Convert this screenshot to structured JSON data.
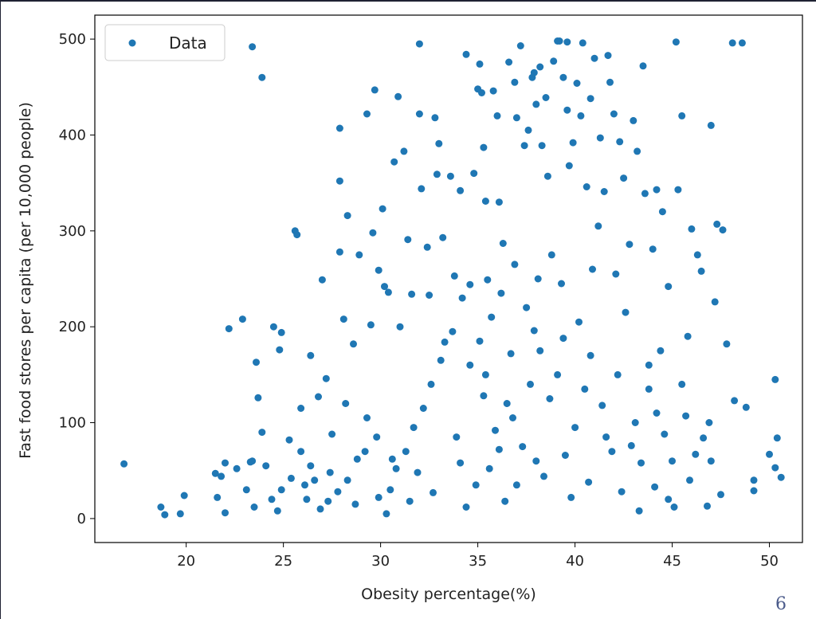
{
  "page": {
    "number": "6"
  },
  "colors": {
    "marker": "#1f77b4",
    "axis": "#000000",
    "text": "#222222",
    "page_number": "#4a5a8a"
  },
  "chart_data": {
    "type": "scatter",
    "xlabel": "Obesity percentage(%)",
    "ylabel": "Fast food stores per capita (per 10,000 people)",
    "xlim": [
      15.3,
      51.7
    ],
    "ylim": [
      -25,
      525
    ],
    "xticks": [
      "20",
      "25",
      "30",
      "35",
      "40",
      "45",
      "50"
    ],
    "yticks": [
      "0",
      "100",
      "200",
      "300",
      "400",
      "500"
    ],
    "grid": false,
    "legend": {
      "placement": "top-left",
      "entries": [
        "Data"
      ]
    },
    "series": [
      {
        "name": "Data",
        "points": [
          [
            16.8,
            57
          ],
          [
            18.7,
            12
          ],
          [
            18.9,
            4
          ],
          [
            19.9,
            24
          ],
          [
            19.7,
            5
          ],
          [
            21.5,
            47
          ],
          [
            21.6,
            22
          ],
          [
            22.0,
            6
          ],
          [
            22.0,
            58
          ],
          [
            22.2,
            198
          ],
          [
            22.9,
            208
          ],
          [
            23.3,
            59
          ],
          [
            23.4,
            492
          ],
          [
            23.6,
            163
          ],
          [
            23.7,
            126
          ],
          [
            23.9,
            460
          ],
          [
            23.5,
            12
          ],
          [
            24.1,
            55
          ],
          [
            24.5,
            200
          ],
          [
            24.9,
            194
          ],
          [
            24.8,
            176
          ],
          [
            24.7,
            8
          ],
          [
            25.3,
            82
          ],
          [
            25.6,
            300
          ],
          [
            25.7,
            296
          ],
          [
            25.9,
            115
          ],
          [
            26.2,
            20
          ],
          [
            26.4,
            170
          ],
          [
            26.6,
            40
          ],
          [
            26.8,
            127
          ],
          [
            27.0,
            249
          ],
          [
            27.2,
            146
          ],
          [
            27.5,
            88
          ],
          [
            27.9,
            407
          ],
          [
            27.9,
            352
          ],
          [
            27.9,
            278
          ],
          [
            28.1,
            208
          ],
          [
            28.3,
            316
          ],
          [
            28.2,
            120
          ],
          [
            28.6,
            182
          ],
          [
            28.9,
            275
          ],
          [
            29.2,
            70
          ],
          [
            29.3,
            422
          ],
          [
            29.5,
            202
          ],
          [
            29.6,
            298
          ],
          [
            29.7,
            447
          ],
          [
            29.9,
            259
          ],
          [
            30.1,
            323
          ],
          [
            30.2,
            242
          ],
          [
            30.4,
            236
          ],
          [
            30.3,
            5
          ],
          [
            30.7,
            372
          ],
          [
            30.9,
            440
          ],
          [
            31.0,
            200
          ],
          [
            31.2,
            383
          ],
          [
            31.4,
            291
          ],
          [
            31.6,
            234
          ],
          [
            32.0,
            495
          ],
          [
            32.0,
            422
          ],
          [
            32.1,
            344
          ],
          [
            32.4,
            283
          ],
          [
            32.5,
            233
          ],
          [
            32.8,
            418
          ],
          [
            32.9,
            359
          ],
          [
            33.0,
            391
          ],
          [
            33.2,
            293
          ],
          [
            33.3,
            184
          ],
          [
            33.6,
            357
          ],
          [
            33.8,
            253
          ],
          [
            34.1,
            342
          ],
          [
            34.4,
            484
          ],
          [
            34.6,
            244
          ],
          [
            34.8,
            360
          ],
          [
            35.1,
            474
          ],
          [
            35.0,
            448
          ],
          [
            35.2,
            444
          ],
          [
            35.3,
            387
          ],
          [
            35.4,
            331
          ],
          [
            35.5,
            249
          ],
          [
            35.8,
            446
          ],
          [
            36.0,
            420
          ],
          [
            36.1,
            330
          ],
          [
            36.3,
            287
          ],
          [
            36.6,
            476
          ],
          [
            36.9,
            455
          ],
          [
            37.0,
            418
          ],
          [
            37.2,
            493
          ],
          [
            37.4,
            389
          ],
          [
            37.6,
            405
          ],
          [
            37.8,
            460
          ],
          [
            37.9,
            465
          ],
          [
            38.0,
            432
          ],
          [
            38.2,
            471
          ],
          [
            38.3,
            389
          ],
          [
            38.5,
            439
          ],
          [
            38.6,
            357
          ],
          [
            38.9,
            477
          ],
          [
            39.1,
            498
          ],
          [
            39.2,
            498
          ],
          [
            39.4,
            460
          ],
          [
            39.6,
            426
          ],
          [
            39.6,
            497
          ],
          [
            39.7,
            368
          ],
          [
            39.9,
            392
          ],
          [
            40.1,
            454
          ],
          [
            40.3,
            420
          ],
          [
            40.4,
            496
          ],
          [
            40.6,
            346
          ],
          [
            40.8,
            438
          ],
          [
            41.0,
            480
          ],
          [
            41.3,
            397
          ],
          [
            41.5,
            341
          ],
          [
            41.7,
            483
          ],
          [
            41.8,
            455
          ],
          [
            42.0,
            422
          ],
          [
            42.3,
            393
          ],
          [
            42.5,
            355
          ],
          [
            42.8,
            286
          ],
          [
            43.0,
            415
          ],
          [
            43.2,
            383
          ],
          [
            43.5,
            472
          ],
          [
            43.6,
            339
          ],
          [
            44.0,
            281
          ],
          [
            44.2,
            343
          ],
          [
            44.5,
            320
          ],
          [
            44.8,
            242
          ],
          [
            45.2,
            497
          ],
          [
            45.3,
            343
          ],
          [
            45.5,
            420
          ],
          [
            45.8,
            190
          ],
          [
            46.0,
            302
          ],
          [
            46.3,
            275
          ],
          [
            46.5,
            258
          ],
          [
            47.0,
            410
          ],
          [
            47.2,
            226
          ],
          [
            47.3,
            307
          ],
          [
            47.6,
            301
          ],
          [
            47.8,
            182
          ],
          [
            48.1,
            496
          ],
          [
            48.6,
            496
          ],
          [
            48.2,
            123
          ],
          [
            48.8,
            116
          ],
          [
            49.2,
            40
          ],
          [
            49.2,
            29
          ],
          [
            50.0,
            67
          ],
          [
            50.3,
            145
          ],
          [
            50.4,
            84
          ],
          [
            50.3,
            53
          ],
          [
            50.6,
            43
          ],
          [
            47.5,
            25
          ],
          [
            47.0,
            60
          ],
          [
            46.8,
            13
          ],
          [
            46.6,
            84
          ],
          [
            46.2,
            67
          ],
          [
            45.9,
            40
          ],
          [
            45.7,
            107
          ],
          [
            45.5,
            140
          ],
          [
            44.8,
            20
          ],
          [
            44.2,
            110
          ],
          [
            43.8,
            160
          ],
          [
            43.3,
            8
          ],
          [
            42.6,
            215
          ],
          [
            42.1,
            255
          ],
          [
            41.2,
            305
          ],
          [
            40.9,
            260
          ],
          [
            40.2,
            205
          ],
          [
            39.3,
            245
          ],
          [
            38.8,
            275
          ],
          [
            38.1,
            250
          ],
          [
            37.5,
            220
          ],
          [
            36.9,
            265
          ],
          [
            36.2,
            235
          ],
          [
            35.7,
            210
          ],
          [
            35.1,
            185
          ],
          [
            34.6,
            160
          ],
          [
            34.2,
            230
          ],
          [
            33.7,
            195
          ],
          [
            33.1,
            165
          ],
          [
            32.6,
            140
          ],
          [
            32.2,
            115
          ],
          [
            31.7,
            95
          ],
          [
            31.3,
            70
          ],
          [
            30.8,
            52
          ],
          [
            30.5,
            30
          ],
          [
            29.8,
            85
          ],
          [
            29.3,
            105
          ],
          [
            28.8,
            62
          ],
          [
            28.3,
            40
          ],
          [
            27.8,
            28
          ],
          [
            27.3,
            18
          ],
          [
            26.9,
            10
          ],
          [
            26.4,
            55
          ],
          [
            25.9,
            70
          ],
          [
            25.4,
            42
          ],
          [
            24.9,
            30
          ],
          [
            24.4,
            20
          ],
          [
            23.9,
            90
          ],
          [
            23.4,
            60
          ],
          [
            23.1,
            30
          ],
          [
            22.6,
            52
          ],
          [
            21.8,
            44
          ],
          [
            26.1,
            35
          ],
          [
            27.4,
            48
          ],
          [
            28.7,
            15
          ],
          [
            29.9,
            22
          ],
          [
            31.9,
            48
          ],
          [
            34.9,
            35
          ],
          [
            35.6,
            52
          ],
          [
            36.4,
            18
          ],
          [
            37.3,
            75
          ],
          [
            38.4,
            44
          ],
          [
            39.5,
            66
          ],
          [
            40.7,
            38
          ],
          [
            41.6,
            85
          ],
          [
            42.4,
            28
          ],
          [
            43.4,
            58
          ],
          [
            44.1,
            33
          ],
          [
            44.6,
            88
          ],
          [
            45.1,
            12
          ],
          [
            33.9,
            85
          ],
          [
            34.4,
            12
          ],
          [
            36.8,
            105
          ],
          [
            38.7,
            125
          ],
          [
            40.0,
            95
          ],
          [
            41.9,
            70
          ],
          [
            43.1,
            100
          ],
          [
            39.1,
            150
          ],
          [
            38.2,
            175
          ],
          [
            37.7,
            140
          ],
          [
            36.5,
            120
          ],
          [
            35.9,
            92
          ],
          [
            40.5,
            135
          ],
          [
            41.4,
            118
          ],
          [
            42.9,
            76
          ],
          [
            37.0,
            35
          ],
          [
            39.8,
            22
          ],
          [
            38.0,
            60
          ],
          [
            36.1,
            72
          ],
          [
            34.1,
            58
          ],
          [
            32.7,
            27
          ],
          [
            31.5,
            18
          ],
          [
            30.6,
            62
          ],
          [
            35.3,
            128
          ],
          [
            42.2,
            150
          ],
          [
            43.8,
            135
          ],
          [
            45.0,
            60
          ],
          [
            46.9,
            100
          ],
          [
            44.4,
            175
          ],
          [
            40.8,
            170
          ],
          [
            39.4,
            188
          ],
          [
            37.9,
            196
          ],
          [
            36.7,
            172
          ],
          [
            35.4,
            150
          ]
        ]
      }
    ]
  }
}
